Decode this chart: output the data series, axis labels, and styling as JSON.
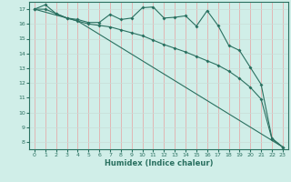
{
  "xlabel": "Humidex (Indice chaleur)",
  "xlim": [
    -0.5,
    23.5
  ],
  "ylim": [
    7.5,
    17.5
  ],
  "yticks": [
    8,
    9,
    10,
    11,
    12,
    13,
    14,
    15,
    16,
    17
  ],
  "xticks": [
    0,
    1,
    2,
    3,
    4,
    5,
    6,
    7,
    8,
    9,
    10,
    11,
    12,
    13,
    14,
    15,
    16,
    17,
    18,
    19,
    20,
    21,
    22,
    23
  ],
  "bg_color": "#d0eee8",
  "line_color": "#2a7060",
  "grid_color_v": "#e8a0a0",
  "grid_color_h": "#c8ddd8",
  "line1_x": [
    0,
    1,
    2,
    3,
    4,
    5,
    6,
    7,
    8,
    9,
    10,
    11,
    12,
    13,
    14,
    15,
    16,
    17,
    18,
    19,
    20,
    21,
    22,
    23
  ],
  "line1_y": [
    17.0,
    17.3,
    16.7,
    16.4,
    16.3,
    16.1,
    16.1,
    16.65,
    16.3,
    16.4,
    17.1,
    17.15,
    16.4,
    16.45,
    16.55,
    15.85,
    16.9,
    15.9,
    14.55,
    14.2,
    13.05,
    11.9,
    8.25,
    7.65
  ],
  "line2_x": [
    0,
    1,
    2,
    3,
    4,
    5,
    6,
    7,
    8,
    9,
    10,
    11,
    12,
    13,
    14,
    15,
    16,
    17,
    18,
    19,
    20,
    21,
    22,
    23
  ],
  "line2_y": [
    17.0,
    17.0,
    16.7,
    16.4,
    16.2,
    16.0,
    15.9,
    15.8,
    15.6,
    15.4,
    15.2,
    14.9,
    14.6,
    14.35,
    14.1,
    13.8,
    13.5,
    13.2,
    12.8,
    12.3,
    11.7,
    10.9,
    8.2,
    7.65
  ],
  "line3_x": [
    0,
    4,
    23
  ],
  "line3_y": [
    17.0,
    16.2,
    7.65
  ]
}
